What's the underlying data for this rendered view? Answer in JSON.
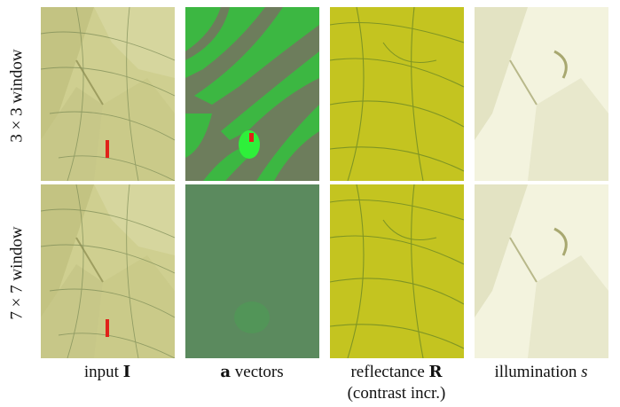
{
  "rows": [
    {
      "label": "3 × 3 window"
    },
    {
      "label": "7 × 7 window"
    }
  ],
  "columns": [
    {
      "pre": "input ",
      "bold": "I",
      "post": "",
      "line2": ""
    },
    {
      "pre": "",
      "bold": "a",
      "post": " vectors",
      "line2": ""
    },
    {
      "pre": "reflectance ",
      "bold": "R",
      "post": "",
      "line2": "(contrast incr.)"
    },
    {
      "pre": "illumination ",
      "bold": "",
      "post": "s",
      "line2": ""
    }
  ],
  "colors": {
    "input_base": "#c9c98a",
    "vectors_base": "#5a8a5c",
    "vectors_green": "#2ecc40",
    "reflectance_base": "#c2c21e",
    "illumination_base": "#f2f2dc",
    "marker_red": "#e0221a"
  }
}
